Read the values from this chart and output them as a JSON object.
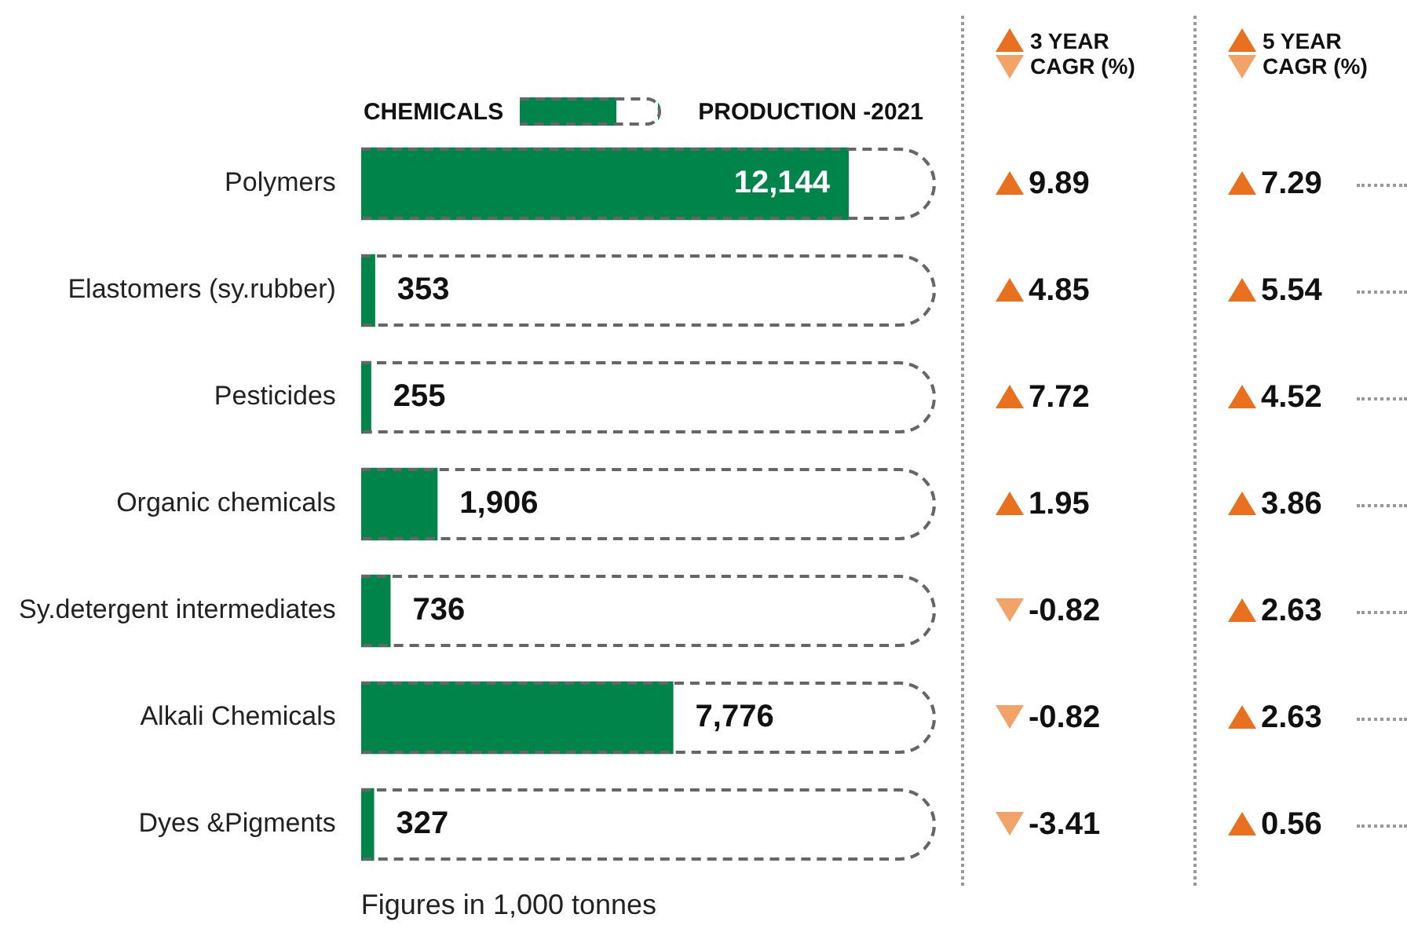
{
  "chart_data": [
    {
      "type": "bar",
      "orientation": "horizontal",
      "ylabel": "CHEMICALS",
      "categories": [
        "Polymers",
        "Elastomers (sy.rubber)",
        "Pesticides",
        "Organic chemicals",
        "Sy.detergent intermediates",
        "Alkali Chemicals",
        "Dyes &Pigments"
      ],
      "series": [
        {
          "name": "PRODUCTION -2021",
          "color": "#00844a",
          "values": [
            12144,
            353,
            255,
            1906,
            736,
            7776,
            327
          ],
          "value_labels": [
            "12,144",
            "353",
            "255",
            "1,906",
            "736",
            "7,776",
            "327"
          ]
        }
      ],
      "tick_labels": "y",
      "legend": "top",
      "grid": false,
      "annotations": [
        "Figures in 1,000 tonnes"
      ]
    },
    {
      "type": "other",
      "title": "3 YEAR CAGR (%)",
      "values": [
        9.89,
        4.85,
        7.72,
        1.95,
        -0.82,
        -0.82,
        -3.41
      ],
      "value_labels": [
        "9.89",
        "4.85",
        "7.72",
        "1.95",
        "-0.82",
        "-0.82",
        "-3.41"
      ]
    },
    {
      "type": "other",
      "title": "5 YEAR CAGR (%)",
      "values": [
        7.29,
        5.54,
        4.52,
        3.86,
        2.63,
        2.63,
        0.56
      ],
      "value_labels": [
        "7.29",
        "5.54",
        "4.52",
        "3.86",
        "2.63",
        "2.63",
        "0.56"
      ]
    }
  ]
}
